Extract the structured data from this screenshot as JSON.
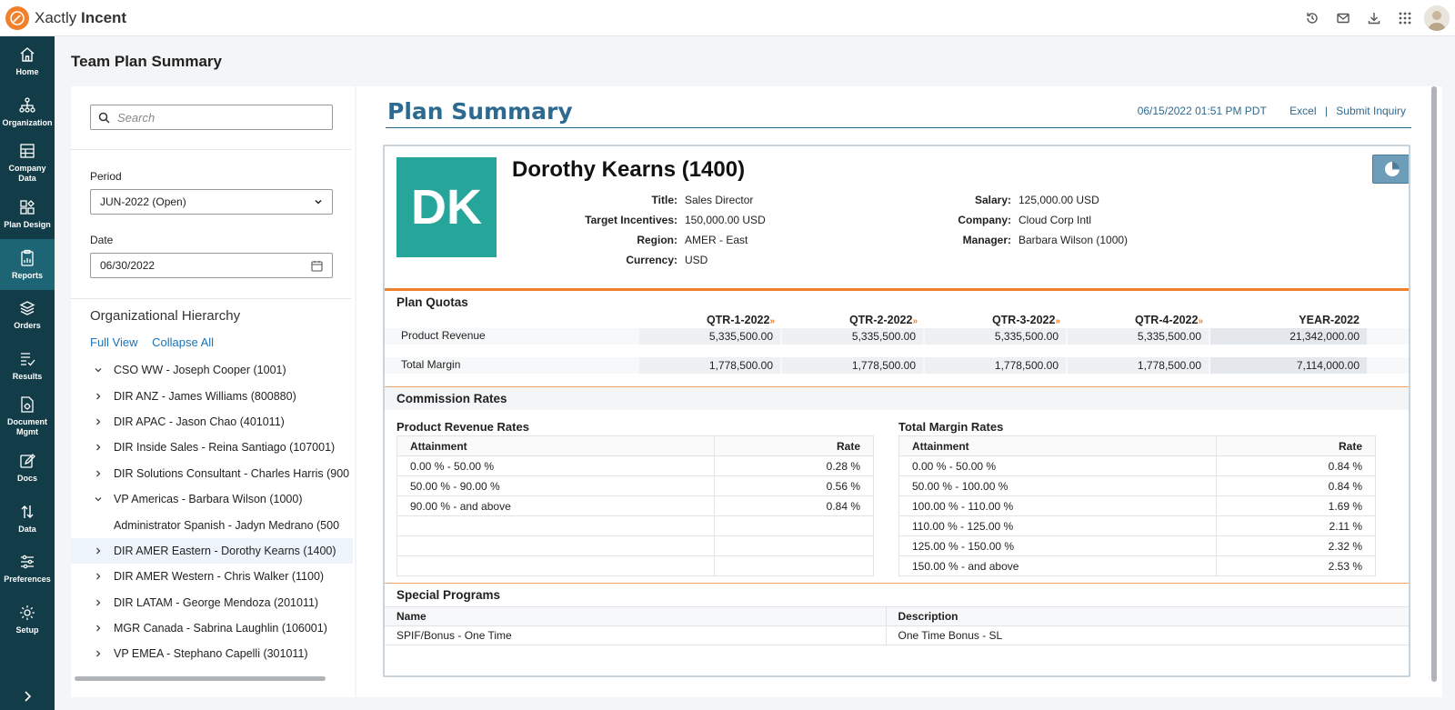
{
  "app": {
    "brand_light": "Xactly",
    "brand_bold": "Incent"
  },
  "top_icons": [
    "history-icon",
    "mail-icon",
    "download-icon",
    "apps-grid-icon"
  ],
  "nav": [
    {
      "label": "Home",
      "icon": "home-icon"
    },
    {
      "label": "Organization",
      "icon": "organization-icon"
    },
    {
      "label": "Company Data",
      "icon": "company-data-icon"
    },
    {
      "label": "Plan Design",
      "icon": "plan-design-icon"
    },
    {
      "label": "Reports",
      "icon": "reports-icon",
      "active": true
    },
    {
      "label": "Orders",
      "icon": "orders-icon"
    },
    {
      "label": "Results",
      "icon": "results-icon"
    },
    {
      "label": "Document Mgmt",
      "icon": "document-mgmt-icon"
    },
    {
      "label": "Docs",
      "icon": "docs-icon"
    },
    {
      "label": "Data",
      "icon": "data-icon"
    },
    {
      "label": "Preferences",
      "icon": "preferences-icon"
    },
    {
      "label": "Setup",
      "icon": "setup-icon"
    }
  ],
  "page": {
    "title": "Team Plan Summary"
  },
  "left": {
    "search_placeholder": "Search",
    "period_label": "Period",
    "period_value": "JUN-2022 (Open)",
    "date_label": "Date",
    "date_value": "06/30/2022",
    "org_title": "Organizational Hierarchy",
    "full_view": "Full View",
    "collapse_all": "Collapse All",
    "tree": [
      {
        "label": "CSO WW - Joseph Cooper (1001)",
        "chev": "down"
      },
      {
        "label": "DIR ANZ - James Williams (800880)",
        "chev": "right"
      },
      {
        "label": "DIR APAC - Jason Chao (401011)",
        "chev": "right"
      },
      {
        "label": "DIR Inside Sales - Reina Santiago (107001)",
        "chev": "right"
      },
      {
        "label": "DIR Solutions Consultant - Charles Harris (900",
        "chev": "right"
      },
      {
        "label": "VP Americas - Barbara Wilson (1000)",
        "chev": "down"
      },
      {
        "label": "Administrator Spanish - Jadyn Medrano (500",
        "chev": "none"
      },
      {
        "label": "DIR AMER Eastern - Dorothy Kearns (1400)",
        "chev": "right",
        "selected": true
      },
      {
        "label": "DIR AMER Western - Chris Walker (1100)",
        "chev": "right"
      },
      {
        "label": "DIR LATAM - George Mendoza (201011)",
        "chev": "right"
      },
      {
        "label": "MGR Canada - Sabrina Laughlin (106001)",
        "chev": "right"
      },
      {
        "label": "VP EMEA - Stephano Capelli (301011)",
        "chev": "right"
      }
    ]
  },
  "summary": {
    "title": "Plan Summary",
    "timestamp": "06/15/2022 01:51 PM PDT",
    "excel": "Excel",
    "sep": "|",
    "submit_inquiry": "Submit Inquiry",
    "initials": "DK",
    "avatar_color": "#26a69a",
    "name": "Dorothy Kearns (1400)",
    "info_left": [
      {
        "k": "Title:",
        "v": "Sales Director"
      },
      {
        "k": "Target Incentives:",
        "v": "150,000.00 USD"
      },
      {
        "k": "Region:",
        "v": "AMER - East"
      },
      {
        "k": "Currency:",
        "v": "USD"
      }
    ],
    "info_right": [
      {
        "k": "Salary:",
        "v": "125,000.00 USD"
      },
      {
        "k": "Company:",
        "v": "Cloud Corp Intl"
      },
      {
        "k": "Manager:",
        "v": "Barbara Wilson (1000)"
      }
    ]
  },
  "quotas": {
    "title": "Plan Quotas",
    "columns": [
      "QTR-1-2022",
      "QTR-2-2022",
      "QTR-3-2022",
      "QTR-4-2022",
      "YEAR-2022"
    ],
    "rows": [
      {
        "name": "Product Revenue",
        "values": [
          "5,335,500.00",
          "5,335,500.00",
          "5,335,500.00",
          "5,335,500.00",
          "21,342,000.00"
        ]
      },
      {
        "name": "Total Margin",
        "values": [
          "1,778,500.00",
          "1,778,500.00",
          "1,778,500.00",
          "1,778,500.00",
          "7,114,000.00"
        ]
      }
    ]
  },
  "commission": {
    "title": "Commission Rates",
    "attainment_header": "Attainment",
    "rate_header": "Rate",
    "product_title": "Product Revenue Rates",
    "product_rows": [
      {
        "a": "0.00 % - 50.00 %",
        "r": "0.28 %"
      },
      {
        "a": "50.00 % - 90.00 %",
        "r": "0.56 %"
      },
      {
        "a": "90.00 % - and above",
        "r": "0.84 %"
      }
    ],
    "margin_title": "Total Margin Rates",
    "margin_rows": [
      {
        "a": "0.00 % - 50.00 %",
        "r": "0.84 %"
      },
      {
        "a": "50.00 % - 100.00 %",
        "r": "0.84 %"
      },
      {
        "a": "100.00 % - 110.00 %",
        "r": "1.69 %"
      },
      {
        "a": "110.00 % - 125.00 %",
        "r": "2.11 %"
      },
      {
        "a": "125.00 % - 150.00 %",
        "r": "2.32 %"
      },
      {
        "a": "150.00 % - and above",
        "r": "2.53 %"
      }
    ]
  },
  "special": {
    "title": "Special Programs",
    "name_header": "Name",
    "desc_header": "Description",
    "rows": [
      {
        "name": "SPIF/Bonus - One Time",
        "desc": "One Time Bonus - SL"
      }
    ]
  }
}
